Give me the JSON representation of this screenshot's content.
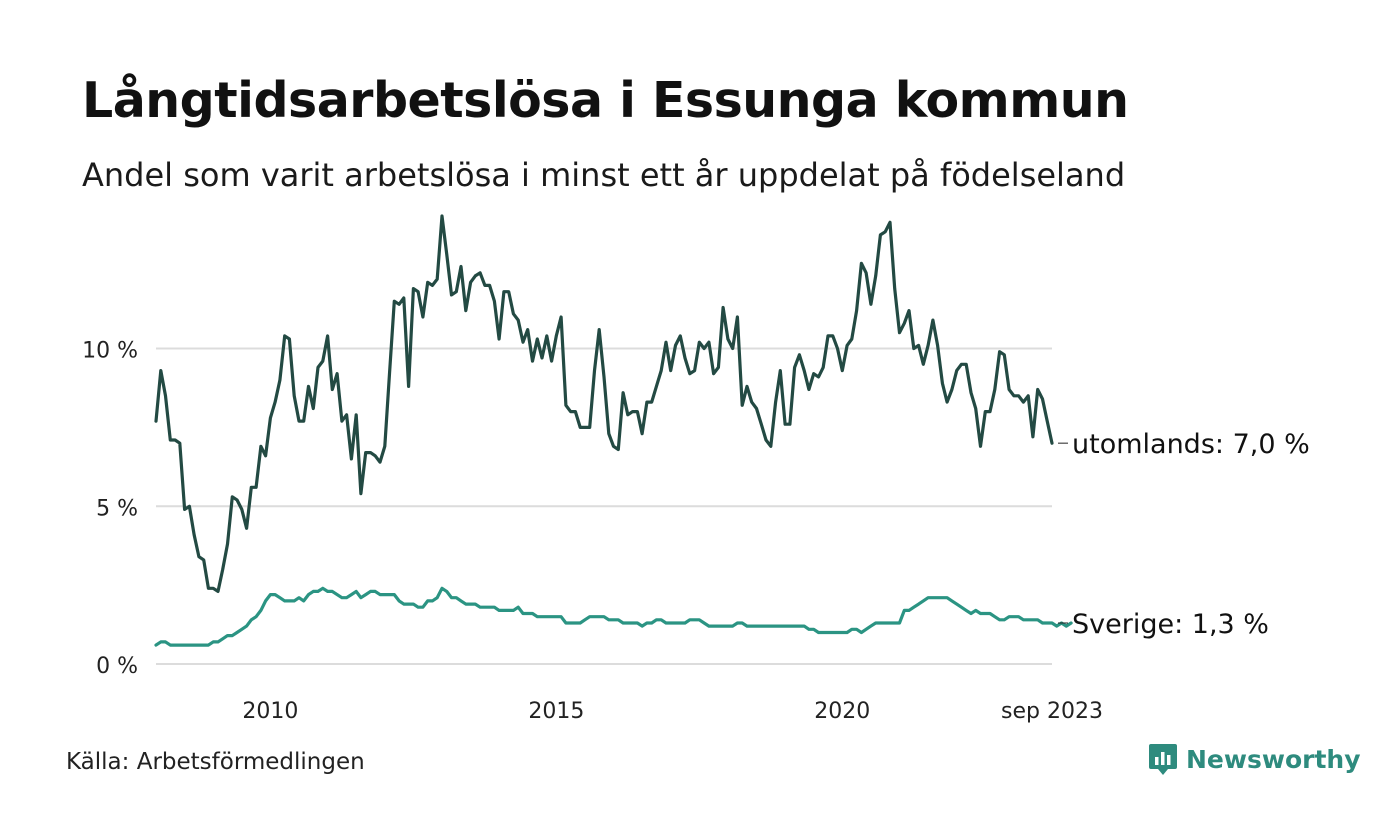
{
  "title": "Långtidsarbetslösa i Essunga kommun",
  "subtitle": "Andel som varit arbetslösa i minst ett år uppdelat på födelseland",
  "source": "Källa: Arbetsförmedlingen",
  "brand": {
    "name": "Newsworthy",
    "icon": "newsworthy-logo-icon",
    "color": "#2e8b7e"
  },
  "chart_data": {
    "type": "line",
    "x_start": "2008-01",
    "x_end": "2023-09",
    "xlim": [
      2008.0,
      2023.667
    ],
    "ylim": [
      0,
      14.2
    ],
    "yticks": [
      {
        "value": 0,
        "label": "0 %"
      },
      {
        "value": 5,
        "label": "5 %"
      },
      {
        "value": 10,
        "label": "10 %"
      }
    ],
    "xticks": [
      {
        "value": 2010.0,
        "label": "2010"
      },
      {
        "value": 2015.0,
        "label": "2015"
      },
      {
        "value": 2020.0,
        "label": "2020"
      },
      {
        "value": 2023.667,
        "label": "sep 2023"
      }
    ],
    "grid": true,
    "series": [
      {
        "name": "utomlands",
        "label": "utomlands: 7,0 %",
        "color": "#234a43",
        "values": [
          7.7,
          9.3,
          8.5,
          7.1,
          7.1,
          7.0,
          4.9,
          5.0,
          4.1,
          3.4,
          3.3,
          2.4,
          2.4,
          2.3,
          3.0,
          3.8,
          5.3,
          5.2,
          4.9,
          4.3,
          5.6,
          5.6,
          6.9,
          6.6,
          7.8,
          8.3,
          9.0,
          10.4,
          10.3,
          8.5,
          7.7,
          7.7,
          8.8,
          8.1,
          9.4,
          9.6,
          10.4,
          8.7,
          9.2,
          7.7,
          7.9,
          6.5,
          7.9,
          5.4,
          6.7,
          6.7,
          6.6,
          6.4,
          6.9,
          9.2,
          11.5,
          11.4,
          11.6,
          8.8,
          11.9,
          11.8,
          11.0,
          12.1,
          12.0,
          12.2,
          14.2,
          13.0,
          11.7,
          11.8,
          12.6,
          11.2,
          12.1,
          12.3,
          12.4,
          12.0,
          12.0,
          11.5,
          10.3,
          11.8,
          11.8,
          11.1,
          10.9,
          10.2,
          10.6,
          9.6,
          10.3,
          9.7,
          10.4,
          9.6,
          10.4,
          11.0,
          8.2,
          8.0,
          8.0,
          7.5,
          7.5,
          7.5,
          9.3,
          10.6,
          9.1,
          7.3,
          6.9,
          6.8,
          8.6,
          7.9,
          8.0,
          8.0,
          7.3,
          8.3,
          8.3,
          8.8,
          9.3,
          10.2,
          9.3,
          10.1,
          10.4,
          9.7,
          9.2,
          9.3,
          10.2,
          10.0,
          10.2,
          9.2,
          9.4,
          11.3,
          10.3,
          10.0,
          11.0,
          8.2,
          8.8,
          8.3,
          8.1,
          7.6,
          7.1,
          6.9,
          8.3,
          9.3,
          7.6,
          7.6,
          9.4,
          9.8,
          9.3,
          8.7,
          9.2,
          9.1,
          9.4,
          10.4,
          10.4,
          10.0,
          9.3,
          10.1,
          10.3,
          11.2,
          12.7,
          12.4,
          11.4,
          12.3,
          13.6,
          13.7,
          14.0,
          11.9,
          10.5,
          10.8,
          11.2,
          10.0,
          10.1,
          9.5,
          10.1,
          10.9,
          10.1,
          8.9,
          8.3,
          8.7,
          9.3,
          9.5,
          9.5,
          8.6,
          8.1,
          6.9,
          8.0,
          8.0,
          8.7,
          9.9,
          9.8,
          8.7,
          8.5,
          8.5,
          8.3,
          8.5,
          7.2,
          8.7,
          8.4,
          7.7,
          7.0
        ]
      },
      {
        "name": "Sverige",
        "label": "Sverige: 1,3 %",
        "color": "#2b9483",
        "values": [
          0.6,
          0.7,
          0.7,
          0.6,
          0.6,
          0.6,
          0.6,
          0.6,
          0.6,
          0.6,
          0.6,
          0.6,
          0.7,
          0.7,
          0.8,
          0.9,
          0.9,
          1.0,
          1.1,
          1.2,
          1.4,
          1.5,
          1.7,
          2.0,
          2.2,
          2.2,
          2.1,
          2.0,
          2.0,
          2.0,
          2.1,
          2.0,
          2.2,
          2.3,
          2.3,
          2.4,
          2.3,
          2.3,
          2.2,
          2.1,
          2.1,
          2.2,
          2.3,
          2.1,
          2.2,
          2.3,
          2.3,
          2.2,
          2.2,
          2.2,
          2.2,
          2.0,
          1.9,
          1.9,
          1.9,
          1.8,
          1.8,
          2.0,
          2.0,
          2.1,
          2.4,
          2.3,
          2.1,
          2.1,
          2.0,
          1.9,
          1.9,
          1.9,
          1.8,
          1.8,
          1.8,
          1.8,
          1.7,
          1.7,
          1.7,
          1.7,
          1.8,
          1.6,
          1.6,
          1.6,
          1.5,
          1.5,
          1.5,
          1.5,
          1.5,
          1.5,
          1.3,
          1.3,
          1.3,
          1.3,
          1.4,
          1.5,
          1.5,
          1.5,
          1.5,
          1.4,
          1.4,
          1.4,
          1.3,
          1.3,
          1.3,
          1.3,
          1.2,
          1.3,
          1.3,
          1.4,
          1.4,
          1.3,
          1.3,
          1.3,
          1.3,
          1.3,
          1.4,
          1.4,
          1.4,
          1.3,
          1.2,
          1.2,
          1.2,
          1.2,
          1.2,
          1.2,
          1.3,
          1.3,
          1.2,
          1.2,
          1.2,
          1.2,
          1.2,
          1.2,
          1.2,
          1.2,
          1.2,
          1.2,
          1.2,
          1.2,
          1.2,
          1.1,
          1.1,
          1.0,
          1.0,
          1.0,
          1.0,
          1.0,
          1.0,
          1.0,
          1.1,
          1.1,
          1.0,
          1.1,
          1.2,
          1.3,
          1.3,
          1.3,
          1.3,
          1.3,
          1.3,
          1.7,
          1.7,
          1.8,
          1.9,
          2.0,
          2.1,
          2.1,
          2.1,
          2.1,
          2.1,
          2.0,
          1.9,
          1.8,
          1.7,
          1.6,
          1.7,
          1.6,
          1.6,
          1.6,
          1.5,
          1.4,
          1.4,
          1.5,
          1.5,
          1.5,
          1.4,
          1.4,
          1.4,
          1.4,
          1.3,
          1.3,
          1.3,
          1.2,
          1.3,
          1.2,
          1.3
        ]
      }
    ]
  }
}
